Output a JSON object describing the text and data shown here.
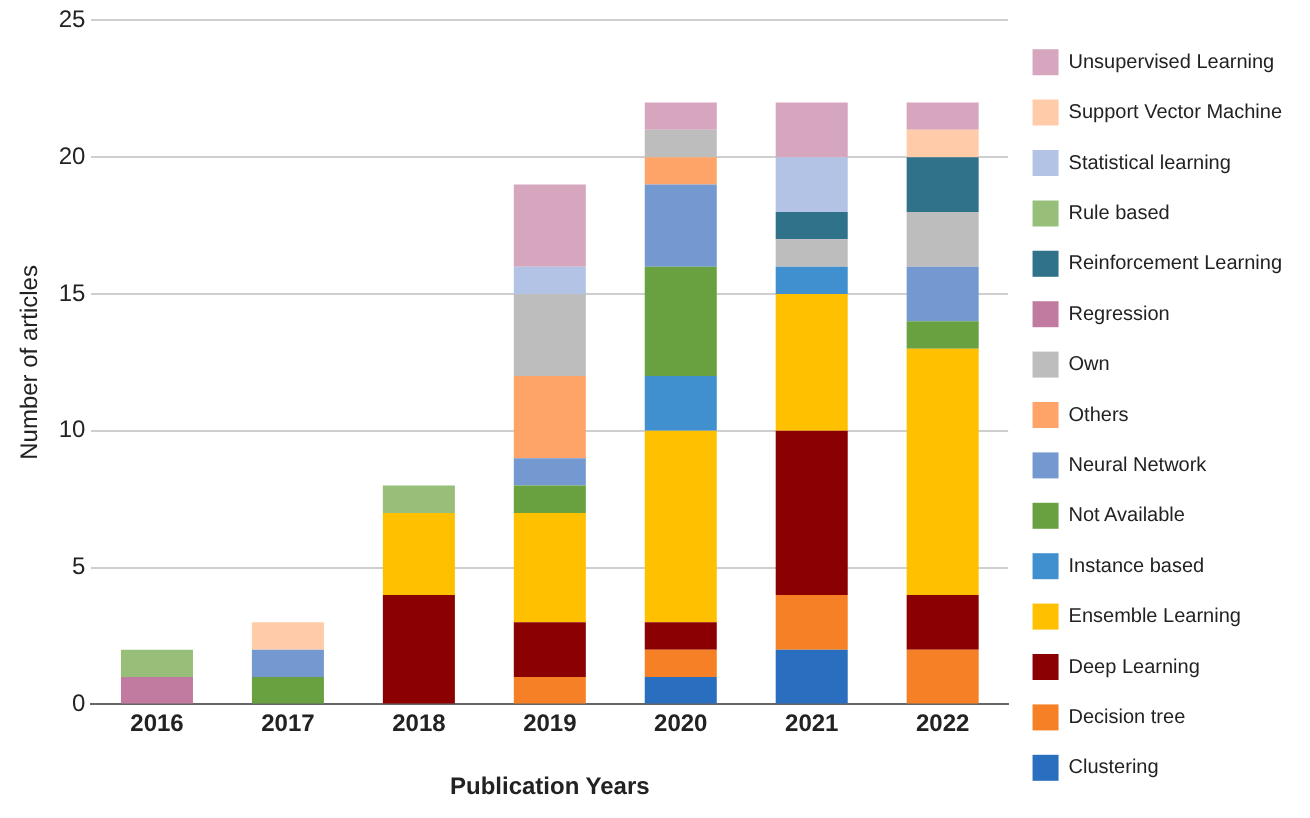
{
  "chart_data": {
    "type": "bar",
    "stacked": true,
    "xlabel": "Publication Years",
    "ylabel": "Number of articles",
    "categories": [
      "2016",
      "2017",
      "2018",
      "2019",
      "2020",
      "2021",
      "2022"
    ],
    "ylim": [
      0,
      25
    ],
    "yticks": [
      0,
      5,
      10,
      15,
      20,
      25
    ],
    "grid": "y",
    "legend": "right",
    "series": [
      {
        "name": "Clustering",
        "color": "#2a6ebf",
        "values": [
          0,
          0,
          0,
          0,
          1,
          2,
          0
        ]
      },
      {
        "name": "Decision tree",
        "color": "#f58025",
        "values": [
          0,
          0,
          0,
          1,
          1,
          2,
          2
        ]
      },
      {
        "name": "Deep Learning",
        "color": "#8b0000",
        "values": [
          0,
          0,
          4,
          2,
          1,
          6,
          2
        ]
      },
      {
        "name": "Ensemble Learning",
        "color": "#ffc000",
        "values": [
          0,
          0,
          3,
          4,
          7,
          5,
          9
        ]
      },
      {
        "name": "Instance based",
        "color": "#4090d0",
        "values": [
          0,
          0,
          0,
          0,
          2,
          1,
          0
        ]
      },
      {
        "name": "Not Available",
        "color": "#69a040",
        "values": [
          0,
          1,
          0,
          1,
          4,
          0,
          1
        ]
      },
      {
        "name": "Neural Network",
        "color": "#7499d0",
        "values": [
          0,
          1,
          0,
          1,
          3,
          0,
          2
        ]
      },
      {
        "name": "Others",
        "color": "#ffa468",
        "values": [
          0,
          0,
          0,
          3,
          1,
          0,
          0
        ]
      },
      {
        "name": "Own",
        "color": "#bdbdbd",
        "values": [
          0,
          0,
          0,
          3,
          1,
          1,
          2
        ]
      },
      {
        "name": "Regression",
        "color": "#c27ba0",
        "values": [
          1,
          0,
          0,
          0,
          0,
          0,
          0
        ]
      },
      {
        "name": "Reinforcement Learning",
        "color": "#31728b",
        "values": [
          0,
          0,
          0,
          0,
          0,
          1,
          2
        ]
      },
      {
        "name": "Rule based",
        "color": "#97bf7a",
        "values": [
          1,
          0,
          1,
          0,
          0,
          0,
          0
        ]
      },
      {
        "name": "Statistical learning",
        "color": "#b3c3e5",
        "values": [
          0,
          0,
          0,
          1,
          0,
          2,
          0
        ]
      },
      {
        "name": "Support Vector Machine",
        "color": "#ffcba8",
        "values": [
          0,
          1,
          0,
          0,
          0,
          0,
          1
        ]
      },
      {
        "name": "Unsupervised Learning",
        "color": "#d5a6bd",
        "values": [
          0,
          0,
          0,
          3,
          1,
          2,
          1
        ]
      }
    ]
  }
}
